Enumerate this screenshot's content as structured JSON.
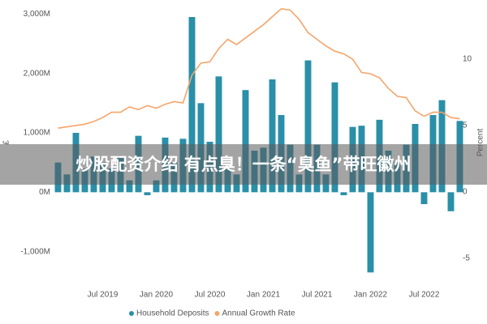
{
  "chart_data": {
    "type": "bar_line",
    "banner": "炒股配资介绍 有点臭！一条“臭鱼”带旺徽州",
    "y_label": "£",
    "y2_label": "Percent",
    "categories": [
      null,
      null,
      null,
      null,
      null,
      "Jul 2019",
      null,
      null,
      null,
      null,
      null,
      "Jan 2020",
      null,
      null,
      null,
      null,
      null,
      "Jul 2020",
      null,
      null,
      null,
      null,
      null,
      "Jan 2021",
      null,
      null,
      null,
      null,
      null,
      "Jul 2021",
      null,
      null,
      null,
      null,
      null,
      "Jan 2022",
      null,
      null,
      null,
      null,
      null,
      "Jul 2022",
      null,
      null,
      null,
      null
    ],
    "series": [
      {
        "name": "Household Deposits",
        "color": "#2a8fa8",
        "type": "bar",
        "values": [
          500,
          300,
          1000,
          400,
          600,
          500,
          400,
          600,
          200,
          950,
          -50,
          200,
          920,
          500,
          900,
          2950,
          1500,
          850,
          1950,
          400,
          300,
          1720,
          700,
          750,
          1900,
          1300,
          800,
          300,
          2220,
          800,
          300,
          1850,
          -50,
          1100,
          1120,
          -1350,
          1220,
          700,
          500,
          800,
          1150,
          -200,
          1300,
          1550,
          -320,
          1200
        ]
      },
      {
        "name": "Annual Growth Rate",
        "color": "#f5a56a",
        "type": "line",
        "axis": "y2",
        "values": [
          4.8,
          4.9,
          5.0,
          5.1,
          5.3,
          5.6,
          6.0,
          6.0,
          6.4,
          6.2,
          6.5,
          6.3,
          6.6,
          6.8,
          6.7,
          8.8,
          9.7,
          9.8,
          10.8,
          11.5,
          11.1,
          11.6,
          12.1,
          12.6,
          13.2,
          13.8,
          13.7,
          13.0,
          12.0,
          11.5,
          11.0,
          10.6,
          10.4,
          10.0,
          9.0,
          8.9,
          8.6,
          7.8,
          7.2,
          7.1,
          6.1,
          5.7,
          6.0,
          6.0,
          5.6,
          5.5
        ]
      }
    ],
    "ylim": [
      -1400,
      3100
    ],
    "yticks": [
      {
        "value": -1000,
        "label": "-1,000M"
      },
      {
        "value": 0,
        "label": "0M"
      },
      {
        "value": 1000,
        "label": "1,000M"
      },
      {
        "value": 2000,
        "label": "2,000M"
      },
      {
        "value": 3000,
        "label": "3,000M"
      }
    ],
    "y2lim": [
      -6.3,
      13.85
    ],
    "y2ticks": [
      -5,
      0,
      5,
      10
    ],
    "legend": "bottom"
  }
}
